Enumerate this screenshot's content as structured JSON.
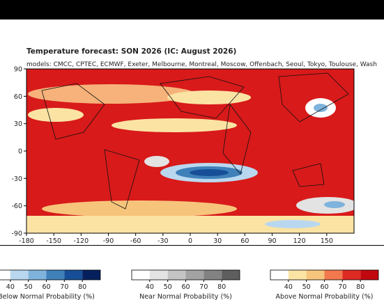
{
  "header": {
    "title": "Temperature forecast: SON 2026 (IC: August 2026)",
    "subtitle": "models: CMCC, CPTEC, ECMWF, Exeter, Melbourne, Montreal, Moscow, Offenbach, Seoul, Tokyo, Toulouse, Wash"
  },
  "map": {
    "xlim": [
      -180,
      180
    ],
    "ylim": [
      -90,
      90
    ],
    "xticks": [
      -180,
      -150,
      -120,
      -90,
      -60,
      -30,
      0,
      30,
      60,
      90,
      120,
      150
    ],
    "yticks": [
      90,
      60,
      30,
      0,
      -30,
      -60,
      -90
    ]
  },
  "legends": [
    {
      "label": "Below Normal Probability (%)",
      "lim": [
        30,
        90
      ],
      "ticks": [
        40,
        50,
        60,
        70,
        80
      ],
      "colors": [
        "#ffffff",
        "#b9d8ef",
        "#7fb3dc",
        "#3f80b9",
        "#164f97",
        "#06205e"
      ]
    },
    {
      "label": "Near Normal Probability (%)",
      "lim": [
        30,
        90
      ],
      "ticks": [
        40,
        50,
        60,
        70,
        80
      ],
      "colors": [
        "#ffffff",
        "#e3e3e3",
        "#c4c4c4",
        "#a3a3a3",
        "#828282",
        "#5e5e5e"
      ]
    },
    {
      "label": "Above Normal Probability (%)",
      "lim": [
        30,
        90
      ],
      "ticks": [
        40,
        50,
        60,
        70,
        80
      ],
      "colors": [
        "#ffffff",
        "#fbe3a4",
        "#f7c47c",
        "#f2784e",
        "#dd2a22",
        "#c2080f"
      ]
    }
  ]
}
